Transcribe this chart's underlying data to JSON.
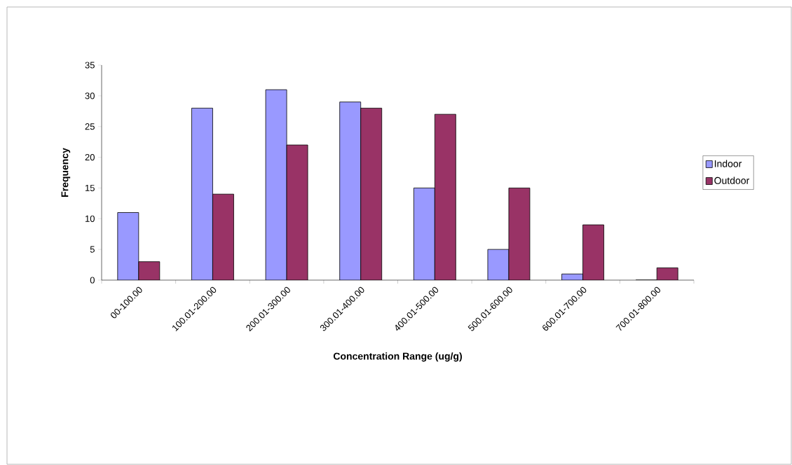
{
  "chart_data": {
    "type": "bar",
    "xlabel": "Concentration Range (ug/g)",
    "ylabel": "Frequency",
    "categories": [
      "00-100.00",
      "100.01-200.00",
      "200.01-300.00",
      "300.01-400.00",
      "400.01-500.00",
      "500.01-600.00",
      "600.01-700.00",
      "700.01-800.00"
    ],
    "series": [
      {
        "name": "Indoor",
        "color": "#9999ff",
        "values": [
          11,
          28,
          31,
          29,
          15,
          5,
          1,
          0
        ]
      },
      {
        "name": "Outdoor",
        "color": "#993366",
        "values": [
          3,
          14,
          22,
          28,
          27,
          15,
          9,
          2
        ]
      }
    ],
    "ylim": [
      0,
      35
    ],
    "yticks": [
      0,
      5,
      10,
      15,
      20,
      25,
      30,
      35
    ],
    "grid": false,
    "legend": "right"
  }
}
